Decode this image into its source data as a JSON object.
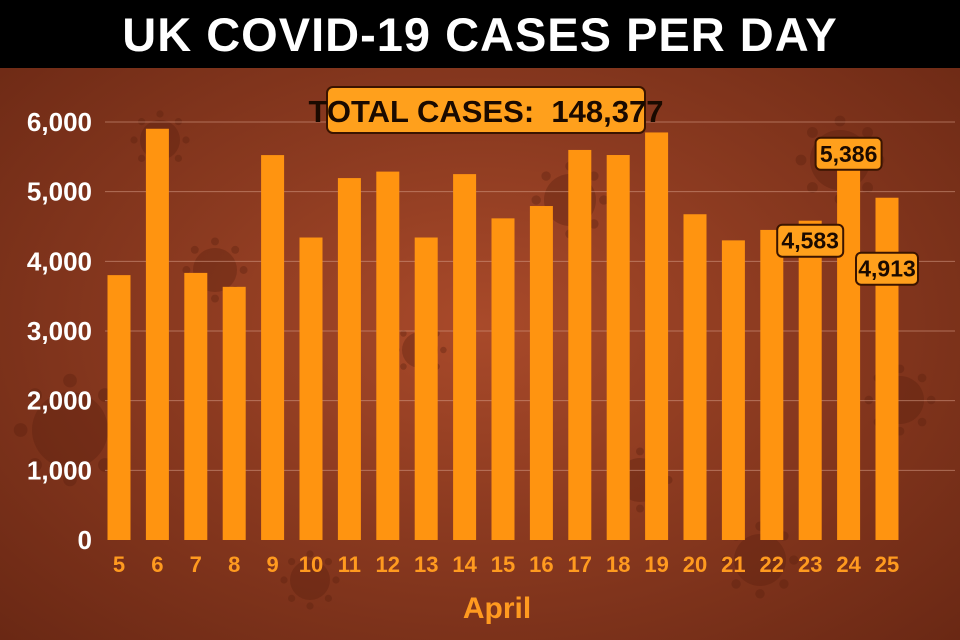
{
  "title": "UK COVID-19 CASES PER DAY",
  "total_label": "TOTAL CASES:  148,377",
  "chart_data": {
    "type": "bar",
    "title": "UK COVID-19 CASES PER DAY",
    "xlabel": "April",
    "ylabel": "",
    "ylim": [
      0,
      6000
    ],
    "yticks": [
      0,
      1000,
      2000,
      3000,
      4000,
      5000,
      6000
    ],
    "ytick_labels": [
      "0",
      "1,000",
      "2,000",
      "3,000",
      "4,000",
      "5,000",
      "6,000"
    ],
    "categories": [
      "5",
      "6",
      "7",
      "8",
      "9",
      "10",
      "11",
      "12",
      "13",
      "14",
      "15",
      "16",
      "17",
      "18",
      "19",
      "20",
      "21",
      "22",
      "23",
      "24",
      "25"
    ],
    "values": [
      3802,
      5903,
      3834,
      3634,
      5525,
      4342,
      5195,
      5288,
      4342,
      5252,
      4617,
      4794,
      5599,
      5526,
      5850,
      4676,
      4301,
      4451,
      4583,
      5386,
      4913
    ],
    "grid": true,
    "bar_color": "#ff9410",
    "annotations": [
      {
        "category": "23",
        "text": "4,583"
      },
      {
        "category": "24",
        "text": "5,386"
      },
      {
        "category": "25",
        "text": "4,913"
      }
    ]
  }
}
